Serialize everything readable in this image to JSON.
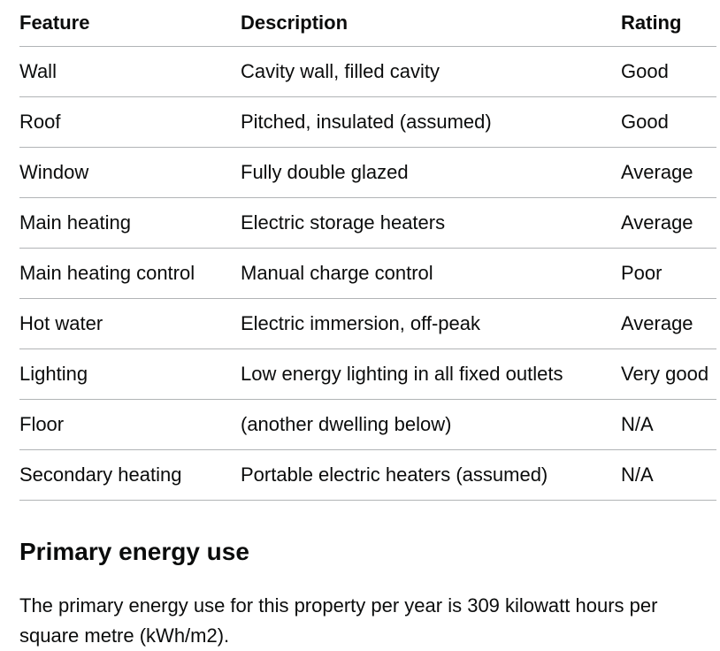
{
  "table": {
    "headers": {
      "feature": "Feature",
      "description": "Description",
      "rating": "Rating"
    },
    "rows": [
      {
        "feature": "Wall",
        "description": "Cavity wall, filled cavity",
        "rating": "Good"
      },
      {
        "feature": "Roof",
        "description": "Pitched, insulated (assumed)",
        "rating": "Good"
      },
      {
        "feature": "Window",
        "description": "Fully double glazed",
        "rating": "Average"
      },
      {
        "feature": "Main heating",
        "description": "Electric storage heaters",
        "rating": "Average"
      },
      {
        "feature": "Main heating control",
        "description": "Manual charge control",
        "rating": "Poor"
      },
      {
        "feature": "Hot water",
        "description": "Electric immersion, off-peak",
        "rating": "Average"
      },
      {
        "feature": "Lighting",
        "description": "Low energy lighting in all fixed outlets",
        "rating": "Very good"
      },
      {
        "feature": "Floor",
        "description": "(another dwelling below)",
        "rating": "N/A"
      },
      {
        "feature": "Secondary heating",
        "description": "Portable electric heaters (assumed)",
        "rating": "N/A"
      }
    ]
  },
  "primary_energy": {
    "heading": "Primary energy use",
    "body": "The primary energy use for this property per year is 309 kilowatt hours per square metre (kWh/m2)."
  },
  "colors": {
    "text": "#0b0c0c",
    "divider": "#b1b4b6"
  }
}
